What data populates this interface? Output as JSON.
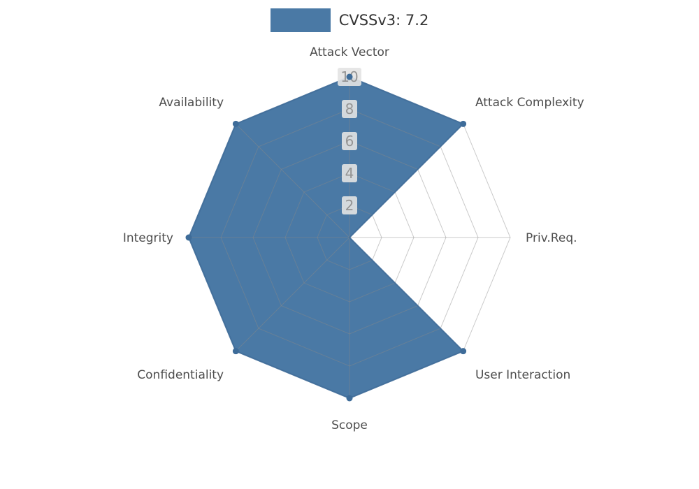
{
  "legend": {
    "label": "CVSSv3: 7.2",
    "swatch_color": "#4a79a5"
  },
  "chart_data": {
    "type": "radar",
    "title": "CVSSv3: 7.2",
    "categories": [
      "Attack Vector",
      "Attack Complexity",
      "Priv.Req.",
      "User Interaction",
      "Scope",
      "Confidentiality",
      "Integrity",
      "Availability"
    ],
    "series": [
      {
        "name": "CVSSv3: 7.2",
        "values": [
          10,
          10,
          0,
          10,
          10,
          10,
          10,
          10
        ]
      }
    ],
    "ticks": [
      "2",
      "4",
      "6",
      "8",
      "10"
    ],
    "tick_values": [
      2,
      4,
      6,
      8,
      10
    ],
    "max": 10,
    "grid": true,
    "rings": 5,
    "legend_position": "top-center",
    "fill_color": "#4a79a5",
    "line_color": "#3e6c99",
    "grid_color": "#8a8a8a",
    "tick_text_color": "#949494",
    "tick_bg_color": "#e3e3e3",
    "axis_label_color": "#4d4d4d"
  }
}
